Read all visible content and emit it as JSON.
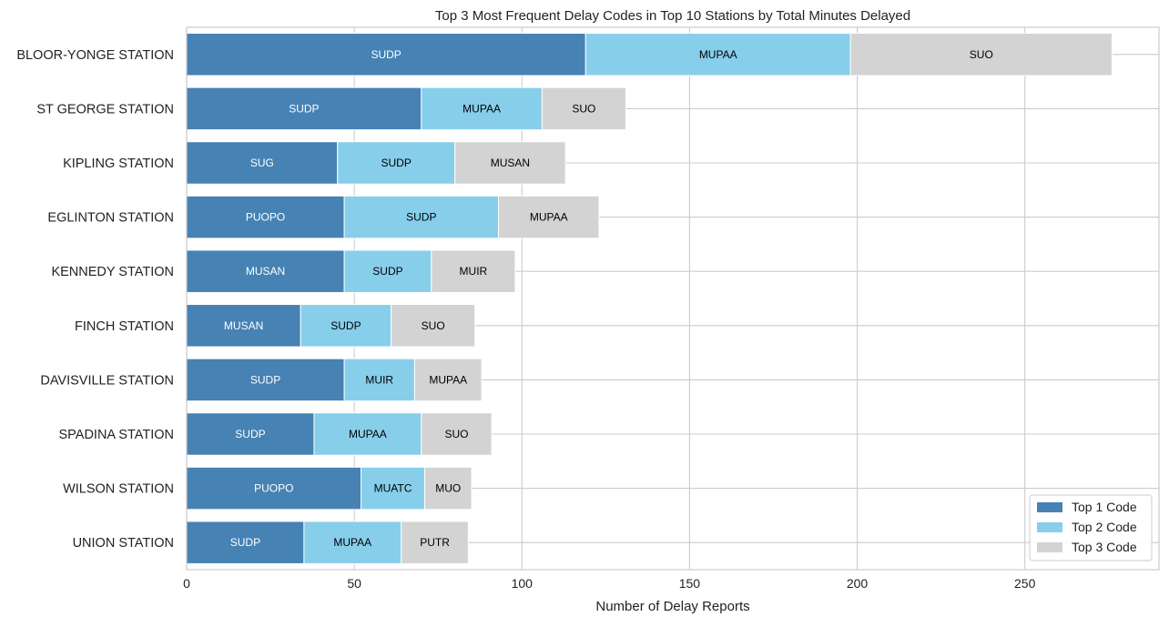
{
  "chart_data": {
    "type": "bar",
    "orientation": "horizontal",
    "stacked": true,
    "title": "Top 3 Most Frequent Delay Codes in Top 10 Stations by Total Minutes Delayed",
    "xlabel": "Number of Delay Reports",
    "ylabel": "",
    "xlim": [
      0,
      290
    ],
    "xticks": [
      0,
      50,
      100,
      150,
      200,
      250
    ],
    "grid": true,
    "legend_position": "bottom-right",
    "categories": [
      "BLOOR-YONGE STATION",
      "ST GEORGE STATION",
      "KIPLING STATION",
      "EGLINTON STATION",
      "KENNEDY STATION",
      "FINCH STATION",
      "DAVISVILLE STATION",
      "SPADINA STATION",
      "WILSON STATION",
      "UNION STATION"
    ],
    "series": [
      {
        "name": "Top 1 Code",
        "color": "#4682b4",
        "label_color": "#ffffff",
        "values": [
          119,
          70,
          45,
          47,
          47,
          34,
          47,
          38,
          52,
          35
        ],
        "codes": [
          "SUDP",
          "SUDP",
          "SUG",
          "PUOPO",
          "MUSAN",
          "MUSAN",
          "SUDP",
          "SUDP",
          "PUOPO",
          "SUDP"
        ]
      },
      {
        "name": "Top 2 Code",
        "color": "#87ceeb",
        "label_color": "#000000",
        "values": [
          79,
          36,
          35,
          46,
          26,
          27,
          21,
          32,
          19,
          29
        ],
        "codes": [
          "MUPAA",
          "MUPAA",
          "SUDP",
          "SUDP",
          "SUDP",
          "SUDP",
          "MUIR",
          "MUPAA",
          "MUATC",
          "MUPAA"
        ]
      },
      {
        "name": "Top 3 Code",
        "color": "#d3d3d3",
        "label_color": "#000000",
        "values": [
          78,
          25,
          33,
          30,
          25,
          25,
          20,
          21,
          14,
          20
        ],
        "codes": [
          "SUO",
          "SUO",
          "MUSAN",
          "MUPAA",
          "MUIR",
          "SUO",
          "MUPAA",
          "SUO",
          "MUO",
          "PUTR"
        ]
      }
    ]
  }
}
